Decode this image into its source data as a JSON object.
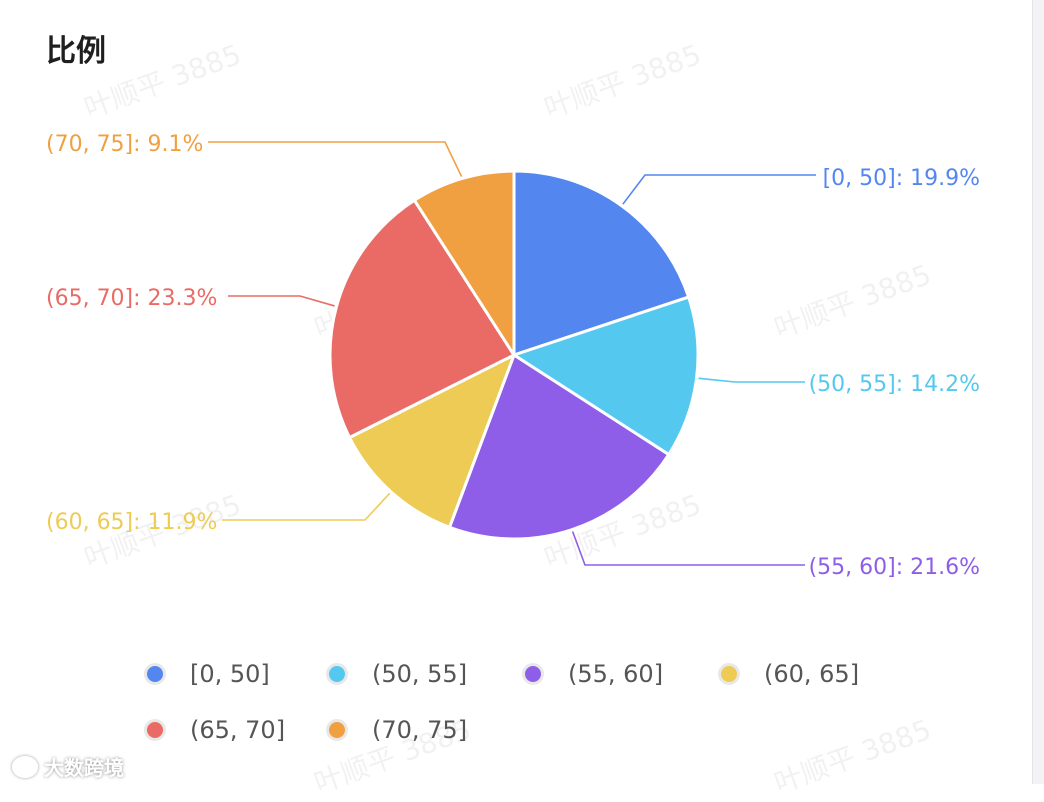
{
  "title": "比例",
  "watermark": "叶顺平 3885",
  "brand": {
    "name": "大数跨境",
    "icon": "brand-logo-icon"
  },
  "chart_data": {
    "type": "pie",
    "title": "比例",
    "slices": [
      {
        "name": "[0, 50]",
        "value": 19.9,
        "label": "[0, 50]: 19.9%",
        "color": "#5486f0"
      },
      {
        "name": "(50, 55]",
        "value": 14.2,
        "label": "(50, 55]: 14.2%",
        "color": "#54c8ee"
      },
      {
        "name": "(55, 60]",
        "value": 21.6,
        "label": "(55, 60]: 21.6%",
        "color": "#8e5ee8"
      },
      {
        "name": "(60, 65]",
        "value": 11.9,
        "label": "(60, 65]: 11.9%",
        "color": "#edcb55"
      },
      {
        "name": "(65, 70]",
        "value": 23.3,
        "label": "(65, 70]: 23.3%",
        "color": "#ea6b66"
      },
      {
        "name": "(70, 75]",
        "value": 9.1,
        "label": "(70, 75]: 9.1%",
        "color": "#f0a040"
      }
    ],
    "legend": {
      "position": "bottom"
    }
  }
}
